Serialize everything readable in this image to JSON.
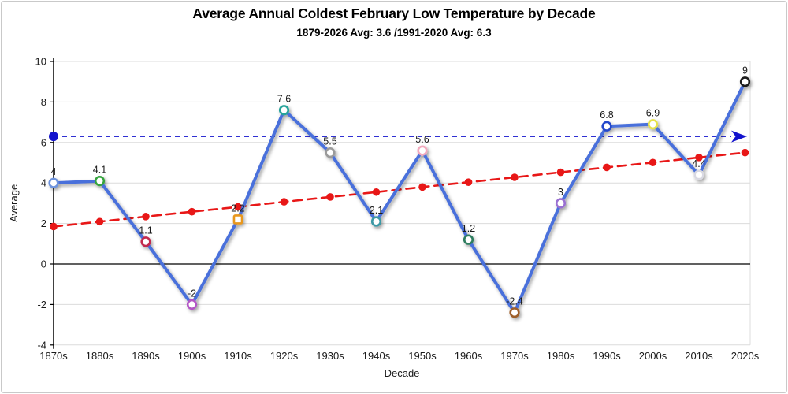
{
  "title": "Average Annual Coldest February Low Temperature by Decade",
  "subtitle": "1879-2026 Avg: 3.6 /1991-2020 Avg: 6.3",
  "chart_data": {
    "type": "line",
    "title": "Average Annual Coldest February Low Temperature by Decade",
    "subtitle": "1879-2026 Avg: 3.6 /1991-2020 Avg: 6.3",
    "xlabel": "Decade",
    "ylabel": "Average",
    "ylim": [
      -4,
      10
    ],
    "ytick_step": 2,
    "ytick_labels": [
      "10",
      "8",
      "6",
      "4",
      "2",
      "0",
      "-2",
      "-4"
    ],
    "grid": "horizontal",
    "legend_position": "none",
    "categories": [
      "1870s",
      "1880s",
      "1890s",
      "1900s",
      "1910s",
      "1920s",
      "1930s",
      "1940s",
      "1950s",
      "1960s",
      "1970s",
      "1980s",
      "1990s",
      "2000s",
      "2010s",
      "2020s"
    ],
    "series": [
      {
        "name": "average-coldest-february-low",
        "type": "line",
        "color": "#4a6fdb",
        "values": [
          4,
          4.1,
          1.1,
          -2,
          2.2,
          7.6,
          5.5,
          2.1,
          5.6,
          1.2,
          -2.4,
          3,
          6.8,
          6.9,
          4.4,
          9
        ],
        "point_labels": [
          "4",
          "4.1",
          "1.1",
          "-2",
          "2.2",
          "7.6",
          "5.5",
          "2.1",
          "5.6",
          "1.2",
          "-2.4",
          "3",
          "6.8",
          "6.9",
          "4.4",
          "9"
        ],
        "marker_colors": [
          "#6e93dc",
          "#36a43e",
          "#c22b4e",
          "#b356c6",
          "#e8971f",
          "#27a39a",
          "#9a9a9a",
          "#3a98a5",
          "#f2a9bd",
          "#2d7d5f",
          "#9e5e2c",
          "#9a6fd2",
          "#2447cb",
          "#e5e14c",
          "#d9d9e2",
          "#1d1d1d"
        ],
        "marker_shapes": [
          "circle",
          "circle",
          "circle",
          "circle",
          "square",
          "circle",
          "circle",
          "circle",
          "circle",
          "circle",
          "circle",
          "circle",
          "circle",
          "circle",
          "circle",
          "circle"
        ]
      },
      {
        "name": "linear-trend",
        "type": "line-dashed",
        "color": "#e81717",
        "values": [
          1.85,
          2.09,
          2.34,
          2.58,
          2.82,
          3.07,
          3.31,
          3.55,
          3.8,
          4.04,
          4.28,
          4.53,
          4.77,
          5.01,
          5.26,
          5.5
        ]
      }
    ],
    "reference_line": {
      "value": 6.3,
      "color": "#1313cd",
      "style": "dashed",
      "arrow_end": true
    }
  },
  "colors": {
    "grid": "#dcdcdc",
    "axis": "#000000",
    "series_line": "#4a6fdb",
    "trend_line": "#e81717",
    "reference_line": "#1313cd"
  }
}
